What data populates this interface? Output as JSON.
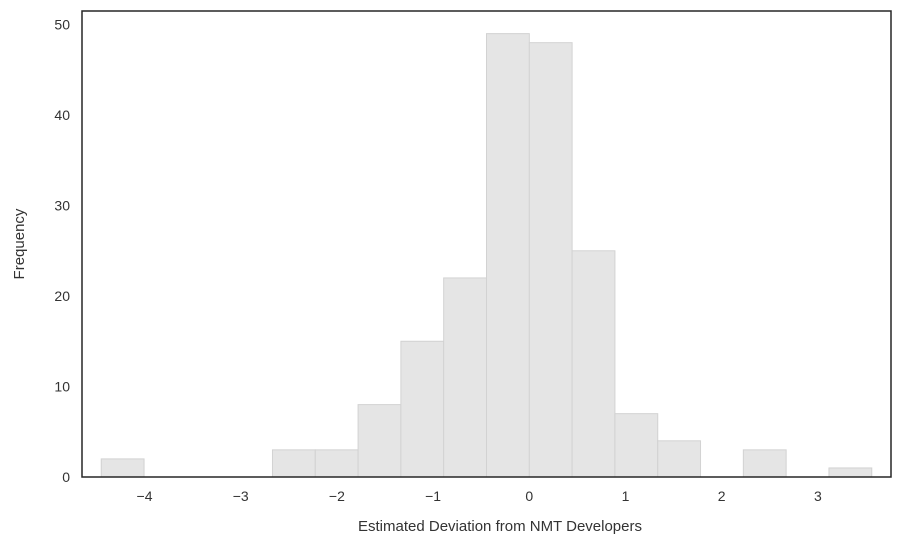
{
  "chart_data": {
    "type": "bar",
    "title": "",
    "xlabel": "Estimated Deviation from NMT Developers",
    "ylabel": "Frequency",
    "bin_width": 0.445,
    "bins": [
      {
        "x0": -4.45,
        "x1": -4.005,
        "count": 2
      },
      {
        "x0": -4.005,
        "x1": -3.56,
        "count": 0
      },
      {
        "x0": -3.56,
        "x1": -3.115,
        "count": 0
      },
      {
        "x0": -3.115,
        "x1": -2.67,
        "count": 0
      },
      {
        "x0": -2.67,
        "x1": -2.225,
        "count": 3
      },
      {
        "x0": -2.225,
        "x1": -1.78,
        "count": 3
      },
      {
        "x0": -1.78,
        "x1": -1.335,
        "count": 8
      },
      {
        "x0": -1.335,
        "x1": -0.89,
        "count": 15
      },
      {
        "x0": -0.89,
        "x1": -0.445,
        "count": 22
      },
      {
        "x0": -0.445,
        "x1": 0.0,
        "count": 49
      },
      {
        "x0": 0.0,
        "x1": 0.445,
        "count": 48
      },
      {
        "x0": 0.445,
        "x1": 0.89,
        "count": 25
      },
      {
        "x0": 0.89,
        "x1": 1.335,
        "count": 7
      },
      {
        "x0": 1.335,
        "x1": 1.78,
        "count": 4
      },
      {
        "x0": 1.78,
        "x1": 2.225,
        "count": 0
      },
      {
        "x0": 2.225,
        "x1": 2.67,
        "count": 3
      },
      {
        "x0": 2.67,
        "x1": 3.115,
        "count": 0
      },
      {
        "x0": 3.115,
        "x1": 3.56,
        "count": 1
      }
    ],
    "xlim": [
      -4.65,
      3.76
    ],
    "ylim": [
      0,
      51.5
    ],
    "x_ticks": [
      -4,
      -3,
      -2,
      -1,
      0,
      1,
      2,
      3
    ],
    "x_tick_labels": [
      "−4",
      "−3",
      "−2",
      "−1",
      "0",
      "1",
      "2",
      "3"
    ],
    "y_ticks": [
      0,
      10,
      20,
      30,
      40,
      50
    ],
    "y_tick_labels": [
      "0",
      "10",
      "20",
      "30",
      "40",
      "50"
    ],
    "grid": false,
    "legend": "none",
    "colors": {
      "bar_fill": "#e5e5e5",
      "bar_edge": "#d2d2d2",
      "frame": "#262626",
      "text": "#333333"
    }
  }
}
